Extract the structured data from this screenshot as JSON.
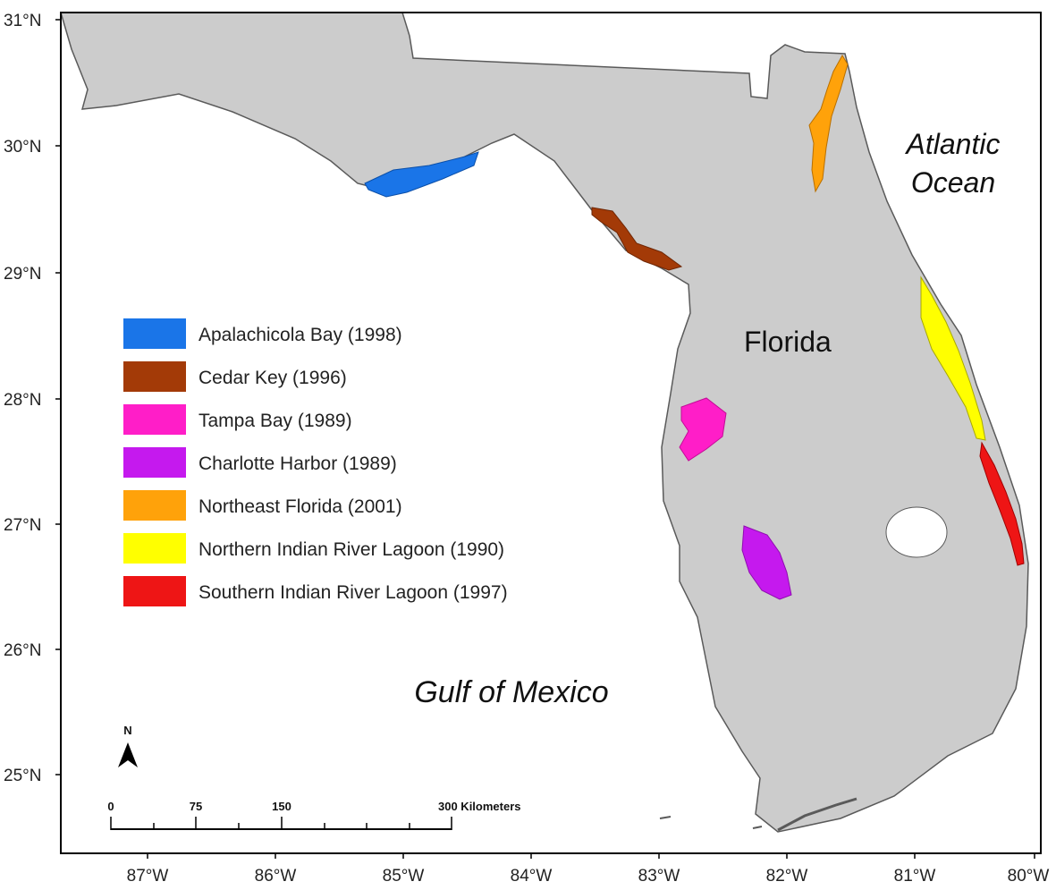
{
  "map": {
    "latitude_labels": [
      "31°N",
      "30°N",
      "29°N",
      "28°N",
      "27°N",
      "26°N",
      "25°N"
    ],
    "longitude_labels": [
      "87°W",
      "86°W",
      "85°W",
      "84°W",
      "83°W",
      "82°W",
      "81°W",
      "80°W"
    ],
    "state_label": "Florida",
    "ocean_label": {
      "line1": "Atlantic",
      "line2": "Ocean"
    },
    "gulf_label": "Gulf of Mexico",
    "north_arrow_label": "N",
    "colors": {
      "land": "#cccccc",
      "coast": "#5a5a5a",
      "frame": "#000000"
    }
  },
  "legend": {
    "items": [
      {
        "label": "Apalachicola Bay (1998)",
        "color": "#1a75e8"
      },
      {
        "label": "Cedar Key (1996)",
        "color": "#a33a07"
      },
      {
        "label": "Tampa Bay (1989)",
        "color": "#ff1ec8"
      },
      {
        "label": "Charlotte Harbor (1989)",
        "color": "#c519ee"
      },
      {
        "label": "Northeast Florida (2001)",
        "color": "#ffa20a"
      },
      {
        "label": "Northern Indian River Lagoon (1990)",
        "color": "#ffff00"
      },
      {
        "label": "Southern Indian River Lagoon (1997)",
        "color": "#ee1515"
      }
    ]
  },
  "scale_bar": {
    "labels": [
      "0",
      "75",
      "150",
      "300 Kilometers"
    ]
  }
}
